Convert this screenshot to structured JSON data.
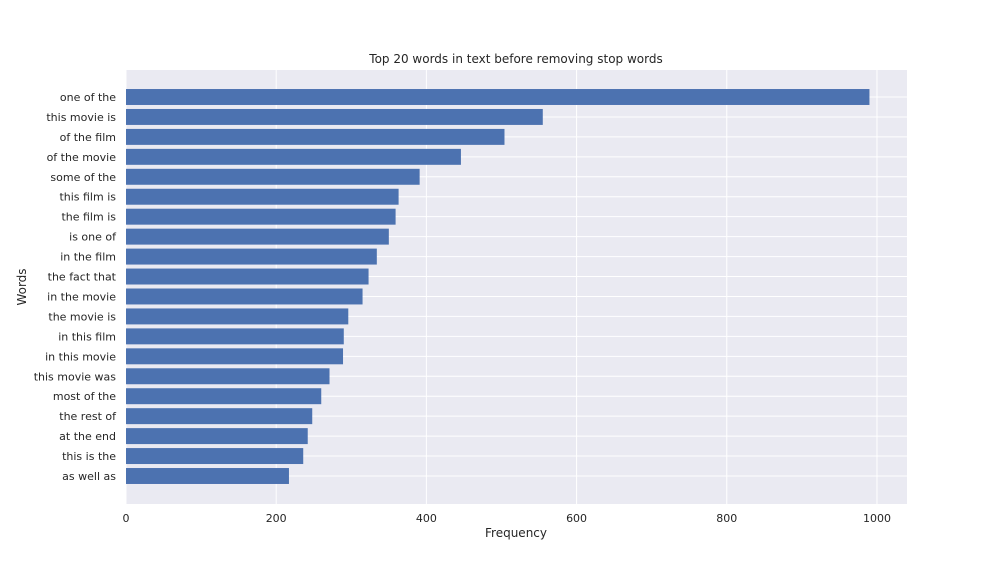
{
  "chart_data": {
    "type": "bar",
    "orientation": "horizontal",
    "title": "Top 20 words in text before removing stop words",
    "xlabel": "Frequency",
    "ylabel": "Words",
    "xlim": [
      0,
      1040
    ],
    "xticks": [
      0,
      200,
      400,
      600,
      800,
      1000
    ],
    "grid": true,
    "bar_color": "#4c72b0",
    "background_color": "#eaeaf2",
    "categories": [
      "one of the",
      "this movie is",
      "of the film",
      "of the movie",
      "some of the",
      "this film is",
      "the film is",
      "is one of",
      "in the film",
      "the fact that",
      "in the movie",
      "the movie is",
      "in this film",
      "in this movie",
      "this movie was",
      "most of the",
      "the rest of",
      "at the end",
      "this is the",
      "as well as"
    ],
    "values": [
      990,
      555,
      504,
      446,
      391,
      363,
      359,
      350,
      334,
      323,
      315,
      296,
      290,
      289,
      271,
      260,
      248,
      242,
      236,
      217
    ]
  }
}
